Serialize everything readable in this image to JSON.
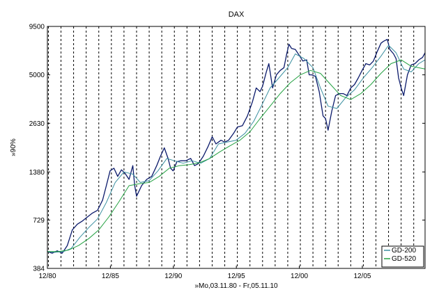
{
  "chart_data": {
    "type": "line",
    "title": "DAX",
    "xlabel": "»Mo,03.11.80 - Fr,05.11.10",
    "ylabel": "»90%",
    "y_scale": "log",
    "ylim": [
      384,
      9500
    ],
    "xlim": [
      1980.92,
      2010.9
    ],
    "yticks": [
      384,
      729,
      1380,
      2630,
      5000,
      9500
    ],
    "ytick_labels": [
      "384",
      "729",
      "1380",
      "2630",
      "5000",
      "9500"
    ],
    "xticks": [
      1980.92,
      1985.92,
      1990.92,
      1995.92,
      2000.92,
      2005.92
    ],
    "xtick_labels": [
      "12/80",
      "12/85",
      "12/90",
      "12/95",
      "12/00",
      "12/05"
    ],
    "yearly_gridlines": true,
    "legend_placement": "bottom-right",
    "series": [
      {
        "name": "",
        "color": "#0b1a6b",
        "x": [
          1980.92,
          1981.3,
          1981.7,
          1982.1,
          1982.5,
          1982.9,
          1983.3,
          1983.7,
          1984.1,
          1984.5,
          1984.9,
          1985.3,
          1985.6,
          1985.9,
          1986.2,
          1986.5,
          1986.8,
          1987.1,
          1987.4,
          1987.7,
          1987.85,
          1988.0,
          1988.4,
          1988.8,
          1989.2,
          1989.6,
          1989.9,
          1990.2,
          1990.5,
          1990.7,
          1990.9,
          1991.2,
          1991.5,
          1991.9,
          1992.3,
          1992.6,
          1992.9,
          1993.3,
          1993.7,
          1994.0,
          1994.3,
          1994.7,
          1995.0,
          1995.3,
          1995.7,
          1996.0,
          1996.4,
          1996.8,
          1997.2,
          1997.5,
          1997.8,
          1998.0,
          1998.3,
          1998.5,
          1998.8,
          1999.1,
          1999.4,
          1999.7,
          1999.9,
          2000.1,
          2000.3,
          2000.6,
          2000.9,
          2001.2,
          2001.5,
          2001.7,
          2001.9,
          2002.2,
          2002.5,
          2002.8,
          2003.0,
          2003.2,
          2003.5,
          2003.8,
          2004.1,
          2004.4,
          2004.7,
          2005.0,
          2005.3,
          2005.6,
          2005.9,
          2006.2,
          2006.5,
          2006.8,
          2007.1,
          2007.4,
          2007.6,
          2007.9,
          2008.1,
          2008.4,
          2008.6,
          2008.8,
          2009.0,
          2009.2,
          2009.5,
          2009.8,
          2010.1,
          2010.4,
          2010.7,
          2010.9
        ],
        "values": [
          480,
          470,
          485,
          470,
          520,
          640,
          690,
          720,
          760,
          800,
          830,
          950,
          1150,
          1400,
          1450,
          1300,
          1420,
          1350,
          1250,
          1500,
          1150,
          1000,
          1150,
          1250,
          1300,
          1500,
          1700,
          1900,
          1650,
          1450,
          1400,
          1580,
          1600,
          1600,
          1650,
          1500,
          1540,
          1700,
          1950,
          2200,
          2000,
          2100,
          2050,
          2100,
          2300,
          2500,
          2550,
          2900,
          3500,
          4200,
          4000,
          4300,
          5200,
          5800,
          4200,
          5000,
          5300,
          5500,
          6500,
          7500,
          7100,
          7000,
          6500,
          6000,
          6100,
          5000,
          5000,
          4900,
          4000,
          2900,
          2800,
          2400,
          3100,
          3800,
          3900,
          3900,
          3800,
          4200,
          4400,
          4800,
          5300,
          5800,
          5700,
          6000,
          6800,
          7600,
          7800,
          8000,
          7000,
          6600,
          6200,
          4800,
          4200,
          3800,
          5000,
          5700,
          5800,
          6100,
          6300,
          6700
        ]
      },
      {
        "name": "GD-200",
        "color": "#3a8fa0",
        "x": [
          1980.92,
          1981.5,
          1982.2,
          1982.8,
          1983.5,
          1984.2,
          1984.9,
          1985.6,
          1986.3,
          1987.0,
          1987.7,
          1988.3,
          1989.0,
          1989.7,
          1990.4,
          1991.0,
          1991.7,
          1992.4,
          1993.1,
          1993.8,
          1994.5,
          1995.2,
          1995.9,
          1996.6,
          1997.3,
          1997.9,
          1998.6,
          1999.3,
          2000.0,
          2000.6,
          2001.3,
          2002.0,
          2002.6,
          2003.2,
          2003.9,
          2004.6,
          2005.3,
          2006.0,
          2006.7,
          2007.4,
          2008.0,
          2008.6,
          2009.2,
          2009.8,
          2010.4,
          2010.9
        ],
        "values": [
          480,
          475,
          480,
          500,
          580,
          660,
          740,
          920,
          1200,
          1380,
          1340,
          1200,
          1230,
          1400,
          1650,
          1600,
          1550,
          1600,
          1550,
          1650,
          2000,
          2050,
          2100,
          2300,
          2700,
          3300,
          4200,
          4800,
          5500,
          6600,
          6200,
          5500,
          4200,
          3300,
          3200,
          3700,
          4100,
          4800,
          5500,
          6400,
          7400,
          6700,
          5400,
          5200,
          5800,
          6100
        ]
      },
      {
        "name": "GD-520",
        "color": "#22a040",
        "x": [
          1980.92,
          1981.8,
          1982.6,
          1983.4,
          1984.2,
          1985.0,
          1985.8,
          1986.6,
          1987.4,
          1988.2,
          1989.0,
          1989.8,
          1990.6,
          1991.4,
          1992.2,
          1993.0,
          1993.8,
          1994.6,
          1995.4,
          1996.2,
          1997.0,
          1997.8,
          1998.6,
          1999.4,
          2000.2,
          2001.0,
          2001.8,
          2002.6,
          2003.4,
          2004.2,
          2005.0,
          2005.8,
          2006.6,
          2007.4,
          2008.2,
          2009.0,
          2009.8,
          2010.9
        ],
        "values": [
          480,
          480,
          490,
          520,
          570,
          640,
          760,
          930,
          1150,
          1180,
          1200,
          1300,
          1450,
          1500,
          1520,
          1560,
          1650,
          1800,
          1950,
          2100,
          2350,
          2800,
          3300,
          3900,
          4500,
          5000,
          5300,
          5100,
          4400,
          3800,
          3600,
          3900,
          4400,
          5100,
          5800,
          6100,
          5600,
          5400
        ]
      }
    ]
  }
}
